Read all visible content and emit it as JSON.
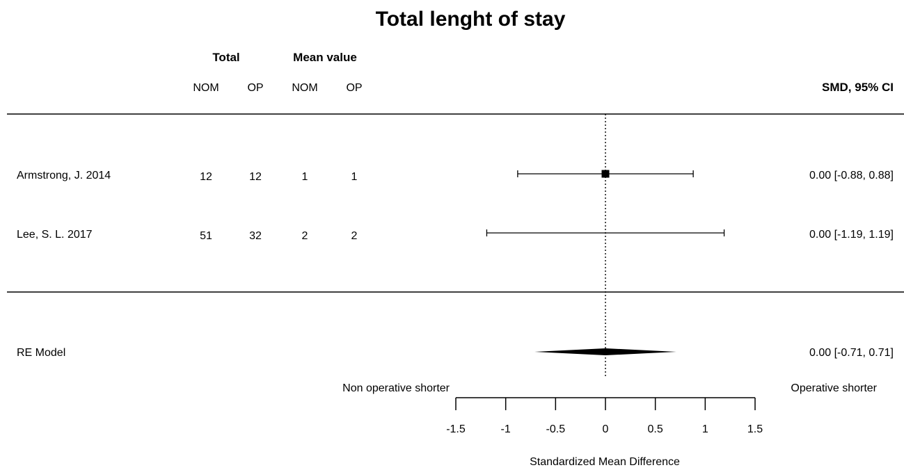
{
  "chart_data": {
    "type": "forest",
    "title": "Total lenght of stay",
    "columns": {
      "group_total": "Total",
      "group_mean": "Mean value",
      "total_nom": "NOM",
      "total_op": "OP",
      "mean_nom": "NOM",
      "mean_op": "OP",
      "ci_header": "SMD, 95% CI"
    },
    "studies": [
      {
        "label": "Armstrong, J. 2014",
        "total_nom": "12",
        "total_op": "12",
        "mean_nom": "1",
        "mean_op": "1",
        "estimate": 0.0,
        "ci_low": -0.88,
        "ci_high": 0.88,
        "ci_text": "0.00 [-0.88, 0.88]"
      },
      {
        "label": "Lee, S. L. 2017",
        "total_nom": "51",
        "total_op": "32",
        "mean_nom": "2",
        "mean_op": "2",
        "estimate": 0.0,
        "ci_low": -1.19,
        "ci_high": 1.19,
        "ci_text": "0.00 [-1.19, 1.19]"
      }
    ],
    "summary": {
      "label": "RE Model",
      "estimate": 0.0,
      "ci_low": -0.71,
      "ci_high": 0.71,
      "ci_text": "0.00 [-0.71, 0.71]"
    },
    "left_annotation": "Non operative shorter",
    "right_annotation": "Operative shorter",
    "xlabel": "Standardized Mean Difference",
    "xlim": [
      -1.5,
      1.5
    ],
    "xticks": [
      -1.5,
      -1,
      -0.5,
      0,
      0.5,
      1,
      1.5
    ],
    "xtick_labels": [
      "-1.5",
      "-1",
      "-0.5",
      "0",
      "0.5",
      "1",
      "1.5"
    ],
    "reference_line": 0
  }
}
